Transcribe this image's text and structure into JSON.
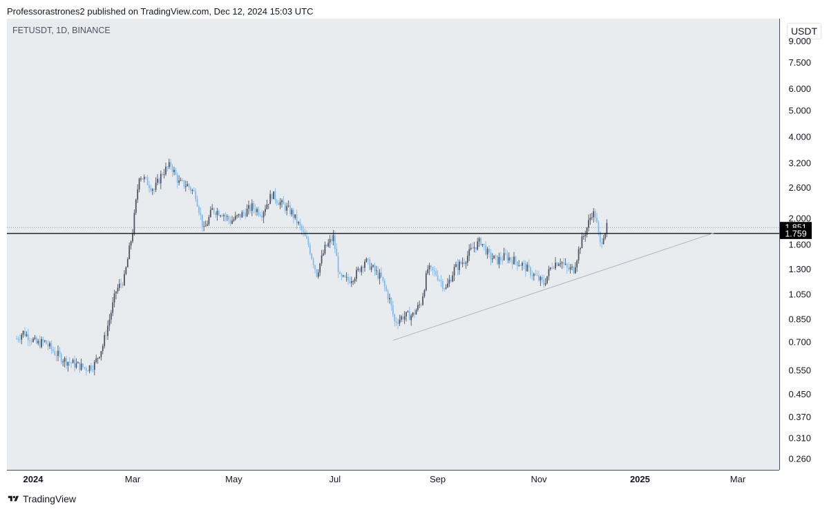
{
  "header": {
    "published": "Professorastrones2 published on TradingView.com, Dec 12, 2024 15:03 UTC"
  },
  "symbol": "FETUSDT, 1D, BINANCE",
  "unit": "USDT",
  "footer": {
    "brand": "TradingView"
  },
  "colors": {
    "up": "#50535e",
    "down": "#7fbbf0",
    "line": "#000000",
    "trend": "#b2b5be",
    "bg": "#e8ecef"
  },
  "chart_data": {
    "type": "candlestick",
    "scale": "log",
    "y_ticks": [
      {
        "value": 9.0,
        "label": "9.000"
      },
      {
        "value": 7.5,
        "label": "7.500"
      },
      {
        "value": 6.0,
        "label": "6.000"
      },
      {
        "value": 5.0,
        "label": "5.000"
      },
      {
        "value": 4.0,
        "label": "4.000"
      },
      {
        "value": 3.2,
        "label": "3.200"
      },
      {
        "value": 2.6,
        "label": "2.600"
      },
      {
        "value": 2.0,
        "label": "2.000"
      },
      {
        "value": 1.6,
        "label": "1.600"
      },
      {
        "value": 1.3,
        "label": "1.300"
      },
      {
        "value": 1.05,
        "label": "1.050"
      },
      {
        "value": 0.85,
        "label": "0.850"
      },
      {
        "value": 0.7,
        "label": "0.700"
      },
      {
        "value": 0.55,
        "label": "0.550"
      },
      {
        "value": 0.45,
        "label": "0.450"
      },
      {
        "value": 0.37,
        "label": "0.370"
      },
      {
        "value": 0.31,
        "label": "0.310"
      },
      {
        "value": 0.26,
        "label": "0.260"
      }
    ],
    "x_ticks": [
      {
        "date": "2024-01-01",
        "label": "2024",
        "bold": true
      },
      {
        "date": "2024-03-01",
        "label": "Mar"
      },
      {
        "date": "2024-05-01",
        "label": "May"
      },
      {
        "date": "2024-07-01",
        "label": "Jul"
      },
      {
        "date": "2024-09-01",
        "label": "Sep"
      },
      {
        "date": "2024-11-01",
        "label": "Nov"
      },
      {
        "date": "2025-01-01",
        "label": "2025",
        "bold": true
      },
      {
        "date": "2025-03-01",
        "label": "Mar"
      }
    ],
    "series": [
      {
        "date": "2023-12-22",
        "close": 0.72
      },
      {
        "date": "2023-12-26",
        "close": 0.76
      },
      {
        "date": "2023-12-30",
        "close": 0.73
      },
      {
        "date": "2024-01-03",
        "close": 0.69
      },
      {
        "date": "2024-01-08",
        "close": 0.7
      },
      {
        "date": "2024-01-14",
        "close": 0.64
      },
      {
        "date": "2024-01-20",
        "close": 0.6
      },
      {
        "date": "2024-01-26",
        "close": 0.58
      },
      {
        "date": "2024-02-02",
        "close": 0.56
      },
      {
        "date": "2024-02-07",
        "close": 0.58
      },
      {
        "date": "2024-02-12",
        "close": 0.68
      },
      {
        "date": "2024-02-16",
        "close": 0.85
      },
      {
        "date": "2024-02-20",
        "close": 1.08
      },
      {
        "date": "2024-02-25",
        "close": 1.2
      },
      {
        "date": "2024-03-01",
        "close": 1.8
      },
      {
        "date": "2024-03-05",
        "close": 2.9
      },
      {
        "date": "2024-03-09",
        "close": 2.75
      },
      {
        "date": "2024-03-14",
        "close": 2.55
      },
      {
        "date": "2024-03-19",
        "close": 2.95
      },
      {
        "date": "2024-03-24",
        "close": 3.15
      },
      {
        "date": "2024-03-29",
        "close": 2.7
      },
      {
        "date": "2024-04-03",
        "close": 2.65
      },
      {
        "date": "2024-04-08",
        "close": 2.45
      },
      {
        "date": "2024-04-13",
        "close": 1.8
      },
      {
        "date": "2024-04-18",
        "close": 2.15
      },
      {
        "date": "2024-04-24",
        "close": 2.1
      },
      {
        "date": "2024-04-29",
        "close": 1.95
      },
      {
        "date": "2024-05-05",
        "close": 2.05
      },
      {
        "date": "2024-05-12",
        "close": 2.2
      },
      {
        "date": "2024-05-18",
        "close": 2.1
      },
      {
        "date": "2024-05-24",
        "close": 2.45
      },
      {
        "date": "2024-05-30",
        "close": 2.25
      },
      {
        "date": "2024-06-05",
        "close": 2.1
      },
      {
        "date": "2024-06-10",
        "close": 1.85
      },
      {
        "date": "2024-06-15",
        "close": 1.6
      },
      {
        "date": "2024-06-20",
        "close": 1.25
      },
      {
        "date": "2024-06-25",
        "close": 1.55
      },
      {
        "date": "2024-06-30",
        "close": 1.7
      },
      {
        "date": "2024-07-04",
        "close": 1.2
      },
      {
        "date": "2024-07-09",
        "close": 1.18
      },
      {
        "date": "2024-07-14",
        "close": 1.25
      },
      {
        "date": "2024-07-19",
        "close": 1.4
      },
      {
        "date": "2024-07-24",
        "close": 1.3
      },
      {
        "date": "2024-07-29",
        "close": 1.2
      },
      {
        "date": "2024-08-03",
        "close": 1.0
      },
      {
        "date": "2024-08-06",
        "close": 0.83
      },
      {
        "date": "2024-08-11",
        "close": 0.87
      },
      {
        "date": "2024-08-17",
        "close": 0.88
      },
      {
        "date": "2024-08-22",
        "close": 0.98
      },
      {
        "date": "2024-08-26",
        "close": 1.3
      },
      {
        "date": "2024-08-31",
        "close": 1.25
      },
      {
        "date": "2024-09-06",
        "close": 1.1
      },
      {
        "date": "2024-09-11",
        "close": 1.3
      },
      {
        "date": "2024-09-17",
        "close": 1.4
      },
      {
        "date": "2024-09-22",
        "close": 1.55
      },
      {
        "date": "2024-09-27",
        "close": 1.65
      },
      {
        "date": "2024-10-02",
        "close": 1.45
      },
      {
        "date": "2024-10-07",
        "close": 1.4
      },
      {
        "date": "2024-10-12",
        "close": 1.45
      },
      {
        "date": "2024-10-17",
        "close": 1.4
      },
      {
        "date": "2024-10-22",
        "close": 1.35
      },
      {
        "date": "2024-10-28",
        "close": 1.25
      },
      {
        "date": "2024-11-04",
        "close": 1.15
      },
      {
        "date": "2024-11-09",
        "close": 1.35
      },
      {
        "date": "2024-11-14",
        "close": 1.4
      },
      {
        "date": "2024-11-18",
        "close": 1.3
      },
      {
        "date": "2024-11-22",
        "close": 1.3
      },
      {
        "date": "2024-11-26",
        "close": 1.6
      },
      {
        "date": "2024-11-30",
        "close": 1.85
      },
      {
        "date": "2024-12-03",
        "close": 2.1
      },
      {
        "date": "2024-12-05",
        "close": 2.05
      },
      {
        "date": "2024-12-08",
        "close": 1.6
      },
      {
        "date": "2024-12-10",
        "close": 1.75
      },
      {
        "date": "2024-12-12",
        "close": 1.851
      }
    ],
    "price_labels": [
      {
        "value": 1.851,
        "label": "1.851",
        "style": "dotted"
      },
      {
        "value": 1.759,
        "label": "1.759",
        "style": "solid"
      }
    ],
    "trendline": {
      "from": {
        "date": "2024-08-05",
        "value": 0.71
      },
      "to": {
        "date": "2025-02-15",
        "value": 1.77
      }
    }
  }
}
